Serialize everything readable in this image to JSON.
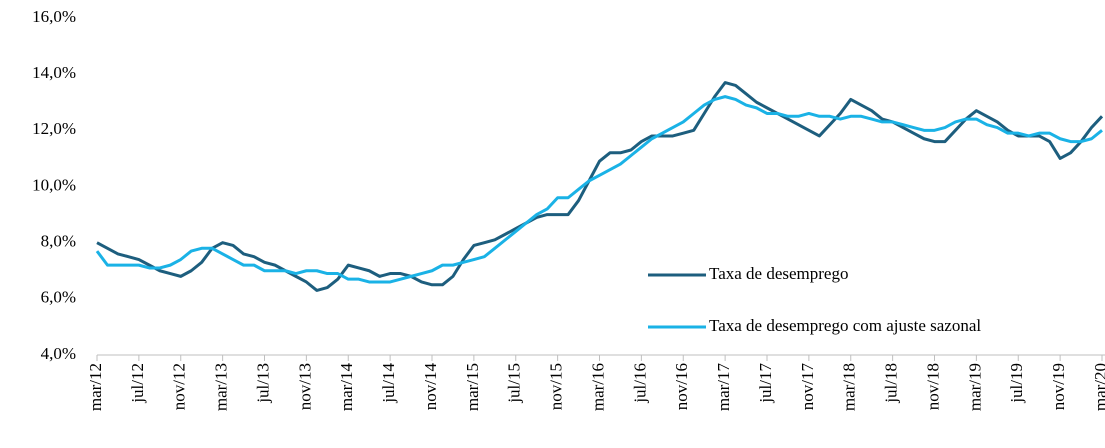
{
  "chart_data": {
    "type": "line",
    "categories": [
      "mar/12",
      null,
      null,
      null,
      "jul/12",
      null,
      null,
      null,
      "nov/12",
      null,
      null,
      null,
      "mar/13",
      null,
      null,
      null,
      "jul/13",
      null,
      null,
      null,
      "nov/13",
      null,
      null,
      null,
      "mar/14",
      null,
      null,
      null,
      "jul/14",
      null,
      null,
      null,
      "nov/14",
      null,
      null,
      null,
      "mar/15",
      null,
      null,
      null,
      "jul/15",
      null,
      null,
      null,
      "nov/15",
      null,
      null,
      null,
      "mar/16",
      null,
      null,
      null,
      "jul/16",
      null,
      null,
      null,
      "nov/16",
      null,
      null,
      null,
      "mar/17",
      null,
      null,
      null,
      "jul/17",
      null,
      null,
      null,
      "nov/17",
      null,
      null,
      null,
      "mar/18",
      null,
      null,
      null,
      "jul/18",
      null,
      null,
      null,
      "nov/18",
      null,
      null,
      null,
      "mar/19",
      null,
      null,
      null,
      "jul/19",
      null,
      null,
      null,
      "nov/19",
      null,
      null,
      null,
      "mar/20"
    ],
    "series": [
      {
        "name": "Taxa de desemprego",
        "color": "#1d5e7e",
        "values": [
          8.0,
          7.8,
          7.6,
          7.5,
          7.4,
          7.2,
          7.0,
          6.9,
          6.8,
          7.0,
          7.3,
          7.8,
          8.0,
          7.9,
          7.6,
          7.5,
          7.3,
          7.2,
          7.0,
          6.8,
          6.6,
          6.3,
          6.4,
          6.7,
          7.2,
          7.1,
          7.0,
          6.8,
          6.9,
          6.9,
          6.8,
          6.6,
          6.5,
          6.5,
          6.8,
          7.4,
          7.9,
          8.0,
          8.1,
          8.3,
          8.5,
          8.7,
          8.9,
          9.0,
          9.0,
          9.0,
          9.5,
          10.2,
          10.9,
          11.2,
          11.2,
          11.3,
          11.6,
          11.8,
          11.8,
          11.8,
          11.9,
          12.0,
          12.6,
          13.2,
          13.7,
          13.6,
          13.3,
          13.0,
          12.8,
          12.6,
          12.4,
          12.2,
          12.0,
          11.8,
          12.2,
          12.6,
          13.1,
          12.9,
          12.7,
          12.4,
          12.3,
          12.1,
          11.9,
          11.7,
          11.6,
          11.6,
          12.0,
          12.4,
          12.7,
          12.5,
          12.3,
          12.0,
          11.8,
          11.8,
          11.8,
          11.6,
          11.0,
          11.2,
          11.6,
          12.1,
          12.5
        ]
      },
      {
        "name": "Taxa de desemprego com ajuste sazonal",
        "color": "#1ab2e6",
        "values": [
          7.7,
          7.2,
          7.2,
          7.2,
          7.2,
          7.1,
          7.1,
          7.2,
          7.4,
          7.7,
          7.8,
          7.8,
          7.6,
          7.4,
          7.2,
          7.2,
          7.0,
          7.0,
          7.0,
          6.9,
          7.0,
          7.0,
          6.9,
          6.9,
          6.7,
          6.7,
          6.6,
          6.6,
          6.6,
          6.7,
          6.8,
          6.9,
          7.0,
          7.2,
          7.2,
          7.3,
          7.4,
          7.5,
          7.8,
          8.1,
          8.4,
          8.7,
          9.0,
          9.2,
          9.6,
          9.6,
          9.9,
          10.2,
          10.4,
          10.6,
          10.8,
          11.1,
          11.4,
          11.7,
          11.9,
          12.1,
          12.3,
          12.6,
          12.9,
          13.1,
          13.2,
          13.1,
          12.9,
          12.8,
          12.6,
          12.6,
          12.5,
          12.5,
          12.6,
          12.5,
          12.5,
          12.4,
          12.5,
          12.5,
          12.4,
          12.3,
          12.3,
          12.2,
          12.1,
          12.0,
          12.0,
          12.1,
          12.3,
          12.4,
          12.4,
          12.2,
          12.1,
          11.9,
          11.9,
          11.8,
          11.9,
          11.9,
          11.7,
          11.6,
          11.6,
          11.7,
          12.0
        ]
      }
    ],
    "ylim": [
      4,
      16
    ],
    "yticks": [
      {
        "value": 4,
        "label": "4,0%"
      },
      {
        "value": 6,
        "label": "6,0%"
      },
      {
        "value": 8,
        "label": "8,0%"
      },
      {
        "value": 10,
        "label": "10,0%"
      },
      {
        "value": 12,
        "label": "12,0%"
      },
      {
        "value": 14,
        "label": "14,0%"
      },
      {
        "value": 16,
        "label": "16,0%"
      }
    ],
    "grid": false,
    "legend": "lower right"
  }
}
